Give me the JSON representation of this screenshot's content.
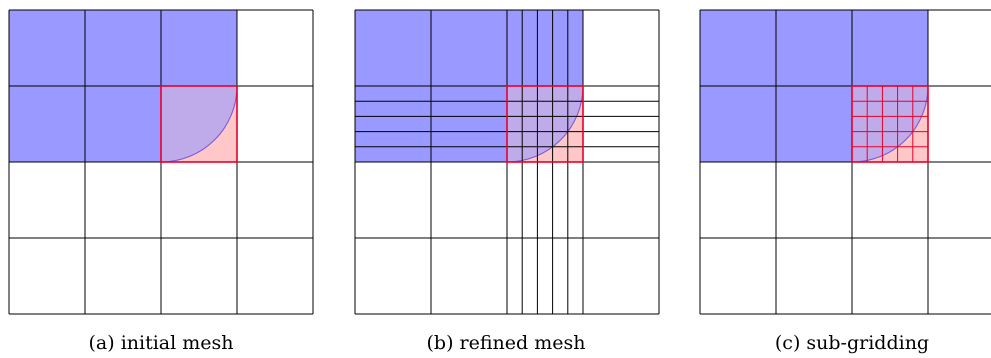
{
  "colors": {
    "fluid_fill": "#9999ff",
    "highlight_fill": "#ffc7c7",
    "highlight_stroke": "#e8002a",
    "interface_stroke": "#7a5bd6",
    "grid_stroke": "#000000",
    "background": "#ffffff"
  },
  "panels": [
    {
      "id": "a",
      "caption": "(a) initial mesh",
      "coarse_grid": "4x4",
      "fluid_cells": [
        [
          0,
          0
        ],
        [
          1,
          0
        ],
        [
          2,
          0
        ],
        [
          0,
          1
        ],
        [
          1,
          1
        ]
      ],
      "interface_cell": [
        2,
        1
      ],
      "refinement": "none"
    },
    {
      "id": "b",
      "caption": "(b) refined mesh",
      "coarse_grid": "4x4",
      "fluid_cells": [
        [
          0,
          0
        ],
        [
          1,
          0
        ],
        [
          2,
          0
        ],
        [
          0,
          1
        ],
        [
          1,
          1
        ]
      ],
      "interface_cell": [
        2,
        1
      ],
      "refinement": "lines through interface cell extended across whole mesh",
      "subdivisions": 5
    },
    {
      "id": "c",
      "caption": "(c) sub-gridding",
      "coarse_grid": "4x4",
      "fluid_cells": [
        [
          0,
          0
        ],
        [
          1,
          0
        ],
        [
          2,
          0
        ],
        [
          0,
          1
        ],
        [
          1,
          1
        ]
      ],
      "interface_cell": [
        2,
        1
      ],
      "refinement": "sub-grid inside interface cell only",
      "subdivisions": 5
    }
  ]
}
